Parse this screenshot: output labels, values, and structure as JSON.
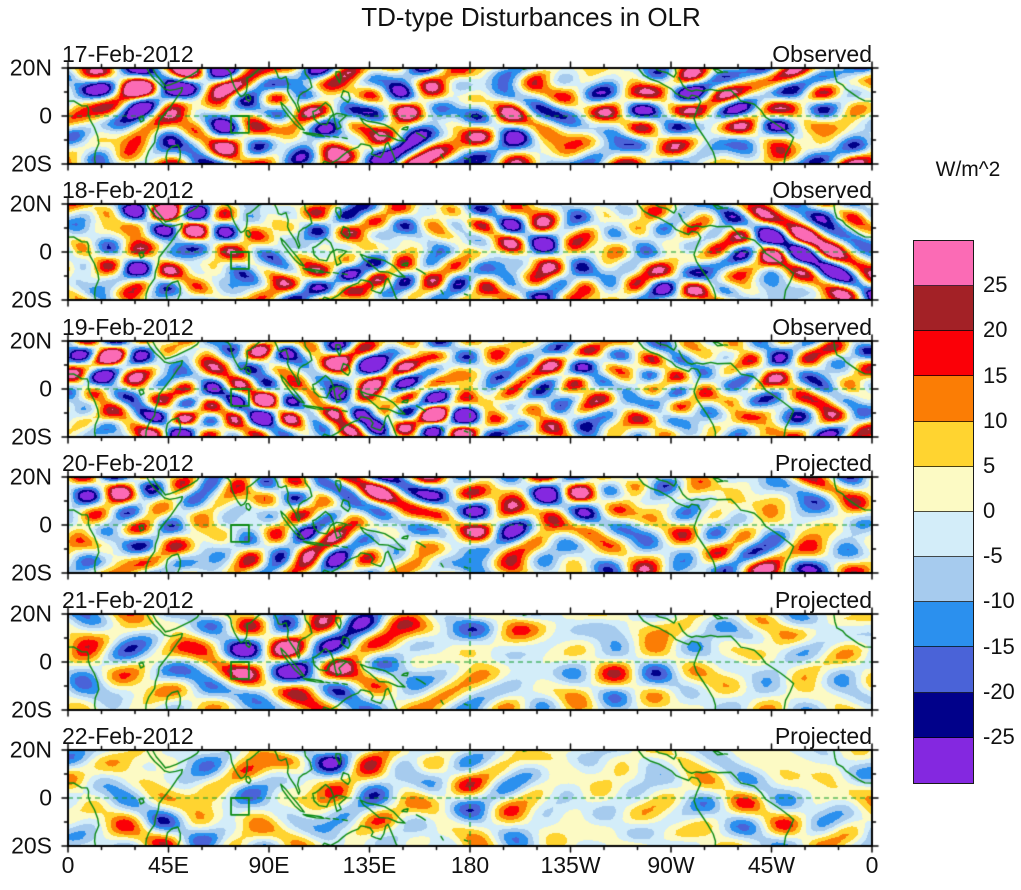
{
  "title": "TD-type Disturbances in OLR",
  "panels": [
    {
      "date": "17-Feb-2012",
      "status": "Observed"
    },
    {
      "date": "18-Feb-2012",
      "status": "Observed"
    },
    {
      "date": "19-Feb-2012",
      "status": "Observed"
    },
    {
      "date": "20-Feb-2012",
      "status": "Projected"
    },
    {
      "date": "21-Feb-2012",
      "status": "Projected"
    },
    {
      "date": "22-Feb-2012",
      "status": "Projected"
    }
  ],
  "y_axis": {
    "tick_labels": [
      "20N",
      "0",
      "20S"
    ]
  },
  "x_axis": {
    "tick_labels": [
      "0",
      "45E",
      "90E",
      "135E",
      "180",
      "135W",
      "90W",
      "45W",
      "0"
    ]
  },
  "colorbar": {
    "title": "W/m^2",
    "tick_labels": [
      "25",
      "20",
      "15",
      "10",
      "5",
      "0",
      "-5",
      "-10",
      "-15",
      "-20",
      "-25"
    ],
    "colors": [
      "#FB6BB5",
      "#A32126",
      "#FB0007",
      "#FB7D05",
      "#FFD430",
      "#FCFAC4",
      "#D3EDF9",
      "#A6CBEE",
      "#2B90EE",
      "#4A63D8",
      "#01018A",
      "#8428E0"
    ]
  },
  "map": {
    "coast_color": "#0a8a12",
    "grid_color": "#0a9a28",
    "equator_line": "0",
    "dateline_line": "180",
    "target_box": {
      "lon_min": 73,
      "lon_max": 81,
      "lat_min": -7,
      "lat_max": 0
    }
  },
  "chart_data": {
    "type": "heatmap",
    "subtype": "filled-contour longitude-latitude maps, 6 stacked daily panels",
    "title": "TD-type Disturbances in OLR",
    "units": "W/m^2",
    "lat_range": [
      -20,
      20
    ],
    "lon_range_deg": [
      0,
      360
    ],
    "lat_tick_labels": [
      "20N",
      "0",
      "20S"
    ],
    "lon_tick_labels": [
      "0",
      "45E",
      "90E",
      "135E",
      "180",
      "135W",
      "90W",
      "45W",
      "0"
    ],
    "contour_levels": [
      -25,
      -20,
      -15,
      -10,
      -5,
      0,
      5,
      10,
      15,
      20,
      25
    ],
    "legend_position": "right-vertical",
    "grid": "dashed equator line and dashed date line (180) in green",
    "panels": [
      {
        "date": "17-Feb-2012",
        "source": "Observed"
      },
      {
        "date": "18-Feb-2012",
        "source": "Observed"
      },
      {
        "date": "19-Feb-2012",
        "source": "Observed"
      },
      {
        "date": "20-Feb-2012",
        "source": "Projected"
      },
      {
        "date": "21-Feb-2012",
        "source": "Projected"
      },
      {
        "date": "22-Feb-2012",
        "source": "Projected"
      }
    ]
  }
}
